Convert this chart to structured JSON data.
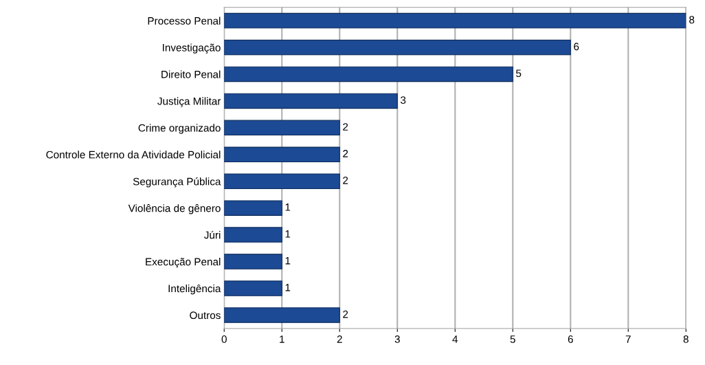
{
  "chart_data": {
    "type": "bar",
    "orientation": "horizontal",
    "categories": [
      "Processo Penal",
      "Investigação",
      "Direito Penal",
      "Justiça Militar",
      "Crime organizado",
      "Controle Externo da Atividade Policial",
      "Segurança Pública",
      "Violência de gênero",
      "Júri",
      "Execução Penal",
      "Inteligência",
      "Outros"
    ],
    "values": [
      8,
      6,
      5,
      3,
      2,
      2,
      2,
      1,
      1,
      1,
      1,
      2
    ],
    "color": "#1c4a94",
    "xlim": [
      0,
      8
    ],
    "xticks": [
      0,
      1,
      2,
      3,
      4,
      5,
      6,
      7,
      8
    ],
    "grid": "x",
    "data_labels": true
  }
}
